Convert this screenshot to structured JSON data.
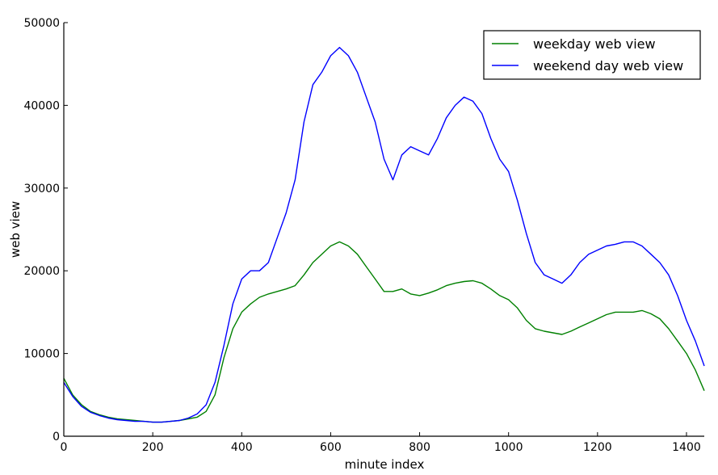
{
  "chart_data": {
    "type": "line",
    "xlabel": "minute index",
    "ylabel": "web view",
    "xlim": [
      0,
      1440
    ],
    "ylim": [
      0,
      50000
    ],
    "xticks": [
      0,
      200,
      400,
      600,
      800,
      1000,
      1200,
      1400
    ],
    "yticks": [
      0,
      10000,
      20000,
      30000,
      40000,
      50000
    ],
    "xtick_labels": [
      "0",
      "200",
      "400",
      "600",
      "800",
      "1000",
      "1200",
      "1400"
    ],
    "ytick_labels": [
      "0",
      "10000",
      "20000",
      "30000",
      "40000",
      "50000"
    ],
    "grid": false,
    "legend_position": "top-right",
    "x": [
      0,
      20,
      40,
      60,
      80,
      100,
      120,
      140,
      160,
      180,
      200,
      220,
      240,
      260,
      280,
      300,
      320,
      340,
      360,
      380,
      400,
      420,
      440,
      460,
      480,
      500,
      520,
      540,
      560,
      580,
      600,
      620,
      640,
      660,
      680,
      700,
      720,
      740,
      760,
      780,
      800,
      820,
      840,
      860,
      880,
      900,
      920,
      940,
      960,
      980,
      1000,
      1020,
      1040,
      1060,
      1080,
      1100,
      1120,
      1140,
      1160,
      1180,
      1200,
      1220,
      1240,
      1260,
      1280,
      1300,
      1320,
      1340,
      1360,
      1380,
      1400,
      1420,
      1440
    ],
    "series": [
      {
        "name": "weekday web view",
        "color": "#008000",
        "values": [
          7000,
          5000,
          3800,
          3000,
          2600,
          2300,
          2100,
          2000,
          1900,
          1800,
          1700,
          1700,
          1800,
          1900,
          2100,
          2300,
          3000,
          5000,
          9500,
          13000,
          15000,
          16000,
          16800,
          17200,
          17500,
          17800,
          18200,
          19500,
          21000,
          22000,
          23000,
          23500,
          23000,
          22000,
          20500,
          19000,
          17500,
          17500,
          17800,
          17200,
          17000,
          17300,
          17700,
          18200,
          18500,
          18700,
          18800,
          18500,
          17800,
          17000,
          16500,
          15500,
          14000,
          13000,
          12700,
          12500,
          12300,
          12700,
          13200,
          13700,
          14200,
          14700,
          15000,
          15000,
          15000,
          15200,
          14800,
          14200,
          13000,
          11500,
          10000,
          8000,
          5500
        ]
      },
      {
        "name": "weekend day web view",
        "color": "#0000ff",
        "values": [
          6500,
          4800,
          3600,
          2900,
          2500,
          2200,
          2000,
          1900,
          1800,
          1800,
          1700,
          1700,
          1800,
          1900,
          2200,
          2700,
          3800,
          6500,
          11000,
          16000,
          19000,
          20000,
          20000,
          21000,
          24000,
          27000,
          31000,
          38000,
          42500,
          44000,
          46000,
          47000,
          46000,
          44000,
          41000,
          38000,
          33500,
          31000,
          34000,
          35000,
          34500,
          34000,
          36000,
          38500,
          40000,
          41000,
          40500,
          39000,
          36000,
          33500,
          32000,
          28500,
          24500,
          21000,
          19500,
          19000,
          18500,
          19500,
          21000,
          22000,
          22500,
          23000,
          23200,
          23500,
          23500,
          23000,
          22000,
          21000,
          19500,
          17000,
          14000,
          11500,
          8500
        ]
      }
    ]
  }
}
